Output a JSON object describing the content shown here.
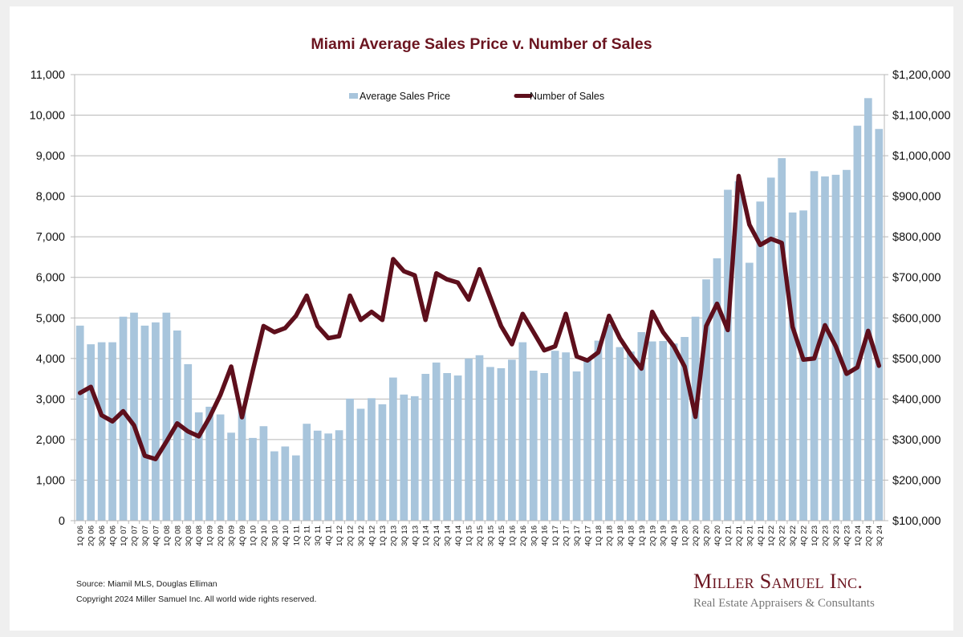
{
  "footer": {
    "source": "Source: Miamil MLS, Douglas Elliman",
    "copyright": "Copyright 2024 Miller Samuel Inc.  All world wide rights reserved."
  },
  "logo": {
    "name": "Miller Samuel Inc.",
    "tagline": "Real Estate Appraisers & Consultants"
  },
  "colors": {
    "bar": "#a8c5dc",
    "line": "#5e0f1c",
    "title": "#6b1520",
    "grid": "#b8b8b8"
  },
  "chart_data": {
    "type": "bar",
    "title": "Miami Average Sales Price v. Number of Sales",
    "xlabel": "",
    "ylabel": "",
    "ylim": [
      0,
      11000
    ],
    "y2lim": [
      100000,
      1200000
    ],
    "grid": true,
    "legend_position": "top-center",
    "y_ticks": [
      "0",
      "1,000",
      "2,000",
      "3,000",
      "4,000",
      "5,000",
      "6,000",
      "7,000",
      "8,000",
      "9,000",
      "10,000",
      "11,000"
    ],
    "y2_ticks": [
      "$100,000",
      "$200,000",
      "$300,000",
      "$400,000",
      "$500,000",
      "$600,000",
      "$700,000",
      "$800,000",
      "$900,000",
      "$1,000,000",
      "$1,100,000",
      "$1,200,000"
    ],
    "categories": [
      "1Q 06",
      "2Q 06",
      "3Q 06",
      "4Q 06",
      "1Q 07",
      "2Q 07",
      "3Q 07",
      "4Q 07",
      "1Q 08",
      "2Q 08",
      "3Q 08",
      "4Q 08",
      "1Q 09",
      "2Q 09",
      "3Q 09",
      "4Q 09",
      "1Q 10",
      "2Q 10",
      "3Q 10",
      "4Q 10",
      "1Q 11",
      "2Q 11",
      "3Q 11",
      "4Q 11",
      "1Q 12",
      "2Q 12",
      "3Q 12",
      "4Q 12",
      "1Q 13",
      "2Q 13",
      "3Q 13",
      "4Q 13",
      "1Q 14",
      "2Q 14",
      "3Q 14",
      "4Q 14",
      "1Q 15",
      "2Q 15",
      "3Q 15",
      "4Q 15",
      "1Q 16",
      "2Q 16",
      "3Q 16",
      "4Q 16",
      "1Q 17",
      "2Q 17",
      "3Q 17",
      "4Q 17",
      "1Q 18",
      "2Q 18",
      "3Q 18",
      "4Q 18",
      "1Q 19",
      "2Q 19",
      "3Q 19",
      "4Q 19",
      "1Q 20",
      "2Q 20",
      "3Q 20",
      "4Q 20",
      "1Q 21",
      "2Q 21",
      "3Q 21",
      "4Q 21",
      "1Q 22",
      "2Q 22",
      "3Q 22",
      "4Q 22",
      "1Q 23",
      "2Q 23",
      "3Q 23",
      "4Q 23",
      "1Q 24",
      "2Q 24",
      "3Q 24"
    ],
    "series": [
      {
        "name": "Average Sales Price",
        "type": "bar",
        "axis": "right",
        "values": [
          581000,
          535000,
          540000,
          540000,
          603000,
          613000,
          581000,
          589000,
          613000,
          569000,
          486000,
          367000,
          381000,
          362000,
          317000,
          376000,
          304000,
          333000,
          271000,
          283000,
          261000,
          339000,
          322000,
          315000,
          323000,
          401000,
          376000,
          402000,
          387000,
          453000,
          411000,
          407000,
          462000,
          490000,
          464000,
          458000,
          500000,
          508000,
          479000,
          476000,
          497000,
          540000,
          470000,
          464000,
          519000,
          515000,
          468000,
          497000,
          544000,
          583000,
          528000,
          517000,
          565000,
          542000,
          543000,
          537000,
          553000,
          603000,
          695000,
          747000,
          916000,
          937000,
          736000,
          887000,
          946000,
          994000,
          860000,
          865000,
          962000,
          949000,
          953000,
          965000,
          1074000,
          1142000,
          1066000
        ]
      },
      {
        "name": "Number of Sales",
        "type": "line",
        "axis": "left",
        "values": [
          3150,
          3300,
          2600,
          2450,
          2700,
          2350,
          1600,
          1520,
          1950,
          2400,
          2200,
          2080,
          2550,
          3100,
          3800,
          2550,
          3700,
          4800,
          4650,
          4750,
          5050,
          5550,
          4800,
          4500,
          4550,
          5550,
          4950,
          5150,
          4950,
          6450,
          6150,
          6050,
          4950,
          6100,
          5950,
          5870,
          5450,
          6200,
          5500,
          4800,
          4350,
          5100,
          4650,
          4200,
          4300,
          5100,
          4050,
          3950,
          4150,
          5050,
          4500,
          4100,
          3750,
          5150,
          4650,
          4300,
          3800,
          2560,
          4800,
          5350,
          4700,
          8500,
          7300,
          6800,
          6950,
          6850,
          4780,
          3970,
          4000,
          4820,
          4300,
          3620,
          3780,
          4680,
          3820
        ]
      }
    ]
  }
}
